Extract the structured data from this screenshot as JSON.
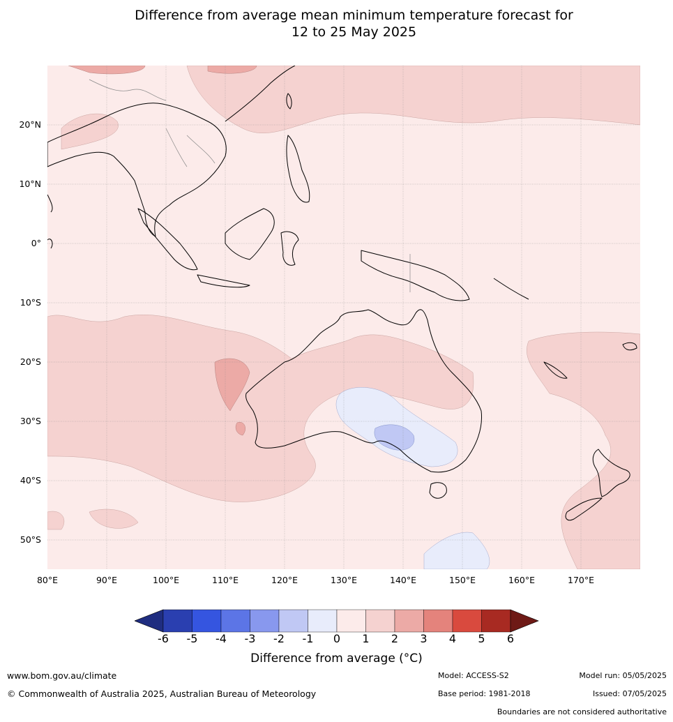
{
  "title_line1": "Difference from average mean minimum temperature forecast for",
  "title_line2": "12 to 25 May 2025",
  "lat_labels": [
    "20°N",
    "10°N",
    "0°",
    "10°S",
    "20°S",
    "30°S",
    "40°S",
    "50°S"
  ],
  "lon_labels": [
    "80°E",
    "90°E",
    "100°E",
    "110°E",
    "120°E",
    "130°E",
    "140°E",
    "150°E",
    "160°E",
    "170°E"
  ],
  "colorbar": {
    "ticks": [
      "-6",
      "-5",
      "-4",
      "-3",
      "-2",
      "-1",
      "0",
      "1",
      "2",
      "3",
      "4",
      "5",
      "6"
    ],
    "colors": [
      "#1f2d80",
      "#2a3fb0",
      "#3555e0",
      "#5c75e6",
      "#8898ee",
      "#c0c8f4",
      "#e8ecfb",
      "#fcebea",
      "#f5d2d0",
      "#ecaaa6",
      "#e4837c",
      "#d94a3e",
      "#a82a22",
      "#6e1a16"
    ],
    "label": "Difference from average (°C)"
  },
  "footer": {
    "website": "www.bom.gov.au/climate",
    "copyright": "© Commonwealth of Australia 2025, Australian Bureau of Meteorology",
    "model": "Model: ACCESS-S2",
    "model_run": "Model run: 05/05/2025",
    "base_period": "Base period: 1981-2018",
    "issued": "Issued: 07/05/2025",
    "disclaimer": "Boundaries are not considered authoritative"
  }
}
